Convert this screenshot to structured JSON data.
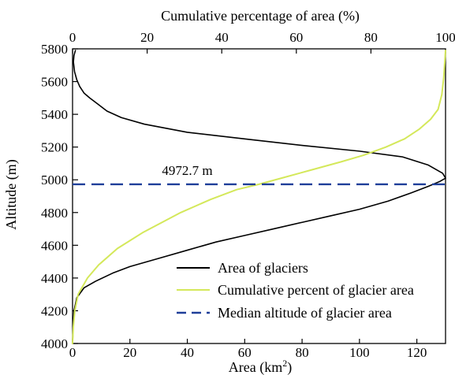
{
  "chart_data": {
    "type": "line",
    "xlabel_bottom": "Area (km²)",
    "xlabel_bottom_base": "Area (km",
    "xlabel_bottom_sup": "2",
    "xlabel_bottom_close": ")",
    "xlabel_top": "Cumulative percentage of area (%)",
    "ylabel": "Altitude (m)",
    "x_bottom_lim": [
      0,
      130
    ],
    "x_top_lim": [
      0,
      100
    ],
    "ylim": [
      4000,
      5800
    ],
    "x_bottom_ticks": [
      "0",
      "20",
      "40",
      "60",
      "80",
      "100",
      "120"
    ],
    "x_bottom_tick_values": [
      0,
      20,
      40,
      60,
      80,
      100,
      120
    ],
    "x_top_ticks": [
      "0",
      "20",
      "40",
      "60",
      "80",
      "100"
    ],
    "x_top_tick_values": [
      0,
      20,
      40,
      60,
      80,
      100
    ],
    "y_ticks": [
      "4000",
      "4200",
      "4400",
      "4600",
      "4800",
      "5000",
      "5200",
      "5400",
      "5600",
      "5800"
    ],
    "y_tick_values": [
      4000,
      4200,
      4400,
      4600,
      4800,
      5000,
      5200,
      5400,
      5600,
      5800
    ],
    "grid": false,
    "legend_position": "lower-right",
    "series": [
      {
        "name": "Area of glaciers",
        "axis": "bottom",
        "color": "#000000",
        "style": "solid",
        "points": [
          [
            0,
            4000
          ],
          [
            0.2,
            4100
          ],
          [
            0.5,
            4200
          ],
          [
            1.5,
            4280
          ],
          [
            4,
            4340
          ],
          [
            8,
            4380
          ],
          [
            14,
            4430
          ],
          [
            20,
            4470
          ],
          [
            30,
            4520
          ],
          [
            40,
            4570
          ],
          [
            50,
            4620
          ],
          [
            60,
            4660
          ],
          [
            70,
            4700
          ],
          [
            80,
            4740
          ],
          [
            90,
            4780
          ],
          [
            100,
            4820
          ],
          [
            110,
            4870
          ],
          [
            118,
            4920
          ],
          [
            124,
            4960
          ],
          [
            128,
            4990
          ],
          [
            130,
            5010
          ],
          [
            129,
            5040
          ],
          [
            124,
            5090
          ],
          [
            115,
            5140
          ],
          [
            100,
            5175
          ],
          [
            80,
            5210
          ],
          [
            60,
            5250
          ],
          [
            40,
            5290
          ],
          [
            25,
            5340
          ],
          [
            17,
            5380
          ],
          [
            12,
            5420
          ],
          [
            9,
            5460
          ],
          [
            6,
            5500
          ],
          [
            4,
            5530
          ],
          [
            2.5,
            5570
          ],
          [
            1.5,
            5610
          ],
          [
            0.7,
            5660
          ],
          [
            0.3,
            5720
          ],
          [
            0.5,
            5760
          ],
          [
            1,
            5790
          ]
        ]
      },
      {
        "name": "Cumulative percent of glacier area",
        "axis": "top",
        "color": "#d4e85a",
        "style": "solid",
        "points": [
          [
            0,
            4000
          ],
          [
            0.2,
            4100
          ],
          [
            0.6,
            4200
          ],
          [
            1.5,
            4300
          ],
          [
            4,
            4400
          ],
          [
            7,
            4480
          ],
          [
            12,
            4580
          ],
          [
            19,
            4680
          ],
          [
            29,
            4800
          ],
          [
            37,
            4880
          ],
          [
            44,
            4940
          ],
          [
            50,
            4972.7
          ],
          [
            56,
            5010
          ],
          [
            64,
            5060
          ],
          [
            72,
            5110
          ],
          [
            78,
            5150
          ],
          [
            84,
            5200
          ],
          [
            89,
            5250
          ],
          [
            93,
            5310
          ],
          [
            96,
            5370
          ],
          [
            98,
            5430
          ],
          [
            99,
            5520
          ],
          [
            99.5,
            5620
          ],
          [
            99.8,
            5720
          ],
          [
            100,
            5790
          ]
        ]
      },
      {
        "name": "Median altitude of glacier area",
        "color": "#1f3f99",
        "style": "dashed",
        "y": 4972.7
      }
    ],
    "annotations": [
      {
        "text": "4972.7 m",
        "x": 40,
        "y": 5050
      }
    ]
  }
}
